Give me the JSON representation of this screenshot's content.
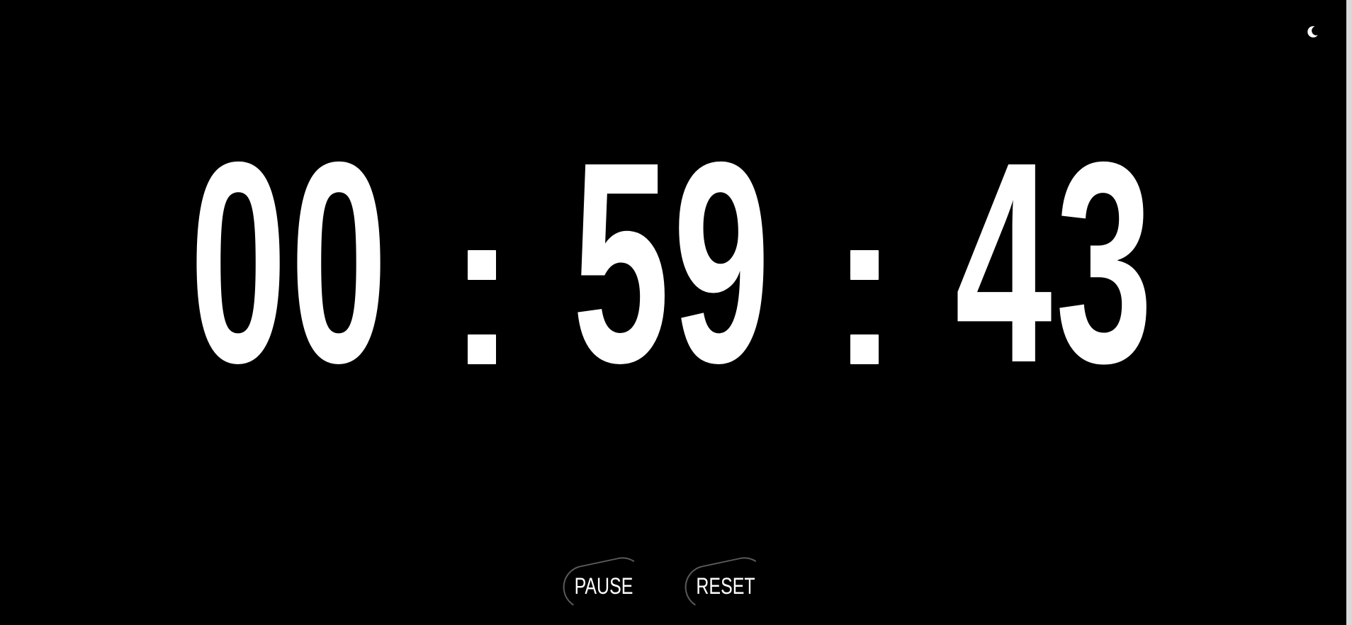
{
  "timer": {
    "hours": "00",
    "minutes": "59",
    "seconds": "43",
    "separator": ":"
  },
  "controls": {
    "pause_label": "PAUSE",
    "reset_label": "RESET"
  },
  "theme_toggle": {
    "icon": "moon-icon"
  },
  "colors": {
    "background": "#000000",
    "text": "#ffffff",
    "button_ring": "#5a5a5a"
  }
}
